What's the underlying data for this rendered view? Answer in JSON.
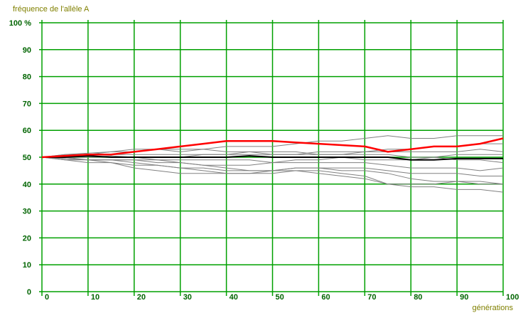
{
  "chart_data": {
    "type": "line",
    "title": "fréquence de l'allèle A",
    "xlabel": "générations",
    "ylabel": "fréquence de l'allèle A",
    "xlim": [
      0,
      100
    ],
    "ylim": [
      0,
      100
    ],
    "grid": true,
    "legend": "none",
    "x_ticks": [
      "0",
      "10",
      "20",
      "30",
      "40",
      "50",
      "60",
      "70",
      "80",
      "90",
      "100"
    ],
    "y_ticks": [
      "0",
      "10",
      "20",
      "30",
      "40",
      "50",
      "60",
      "70",
      "80",
      "90",
      "100 %"
    ],
    "colors": {
      "grid": "#00a000",
      "tick_text": "#006400",
      "label_text": "#808000",
      "highlight": "#ff0000",
      "black": "#000000",
      "gray": "#808080"
    },
    "x": [
      0,
      5,
      10,
      15,
      20,
      25,
      30,
      35,
      40,
      45,
      50,
      55,
      60,
      65,
      70,
      75,
      80,
      85,
      90,
      95,
      100
    ],
    "series": [
      {
        "color": "#ff0000",
        "width": 2.5,
        "values": [
          50,
          50.5,
          51,
          51,
          52,
          53,
          54,
          55,
          56,
          56,
          56,
          55.5,
          55,
          54.5,
          54,
          52,
          53,
          54,
          54,
          55,
          57
        ]
      },
      {
        "color": "#000000",
        "width": 2.0,
        "values": [
          50,
          50,
          50.5,
          50,
          50,
          50,
          50,
          50,
          50,
          50.5,
          50,
          50,
          50,
          50,
          50,
          50,
          49,
          49,
          49.5,
          49.5,
          49.5
        ]
      },
      {
        "color": "#808080",
        "width": 1.0,
        "values": [
          50,
          51,
          51,
          52,
          53,
          53,
          52,
          53,
          54,
          54,
          54,
          55,
          56,
          56,
          57,
          58,
          57,
          57,
          58,
          58,
          58
        ]
      },
      {
        "color": "#808080",
        "width": 1.0,
        "values": [
          50,
          51,
          51.5,
          52,
          52,
          53,
          53,
          53,
          52,
          52,
          52,
          52,
          51,
          51,
          52,
          52,
          52,
          52,
          52,
          53,
          52
        ]
      },
      {
        "color": "#808080",
        "width": 1.0,
        "values": [
          50,
          50.5,
          51,
          51,
          51,
          51,
          51,
          51,
          51,
          52,
          51,
          51,
          51,
          51,
          51,
          51,
          50,
          50,
          51,
          51,
          51
        ]
      },
      {
        "color": "#808080",
        "width": 1.0,
        "values": [
          50,
          50,
          50,
          50.5,
          50,
          49,
          49,
          49,
          49,
          49,
          48,
          49,
          49,
          50,
          49,
          49,
          49,
          50,
          49,
          49,
          48
        ]
      },
      {
        "color": "#808080",
        "width": 1.0,
        "values": [
          50,
          49.5,
          49,
          49,
          49,
          49,
          48,
          47,
          47,
          47,
          48,
          48,
          48,
          48,
          48,
          47,
          46,
          46,
          46,
          45,
          46
        ]
      },
      {
        "color": "#808080",
        "width": 1.0,
        "values": [
          50,
          49.5,
          49,
          48,
          47,
          47,
          46,
          46,
          45,
          45,
          45,
          46,
          46,
          46,
          46,
          45,
          44,
          44,
          44,
          43,
          43
        ]
      },
      {
        "color": "#808080",
        "width": 1.0,
        "values": [
          50,
          49,
          49,
          49,
          48,
          47,
          46,
          45,
          44,
          44,
          45,
          45,
          44,
          43,
          42,
          40,
          40,
          40,
          41,
          40,
          40
        ]
      },
      {
        "color": "#808080",
        "width": 1.0,
        "values": [
          50,
          49,
          48,
          48,
          46,
          45,
          44,
          44,
          44,
          44,
          44,
          45,
          45,
          44,
          43,
          40,
          39,
          39,
          38,
          38,
          37
        ]
      },
      {
        "color": "#808080",
        "width": 1.0,
        "values": [
          50,
          50,
          49,
          49,
          49,
          48,
          48,
          47,
          46,
          45,
          45,
          46,
          46,
          45,
          45,
          44,
          42,
          41,
          41,
          41,
          40
        ]
      },
      {
        "color": "#808080",
        "width": 1.0,
        "values": [
          50,
          50.5,
          50,
          50,
          50,
          50,
          50,
          51,
          51,
          51,
          51,
          51,
          52,
          52,
          52,
          53,
          53,
          54,
          54,
          55,
          55
        ]
      }
    ]
  }
}
